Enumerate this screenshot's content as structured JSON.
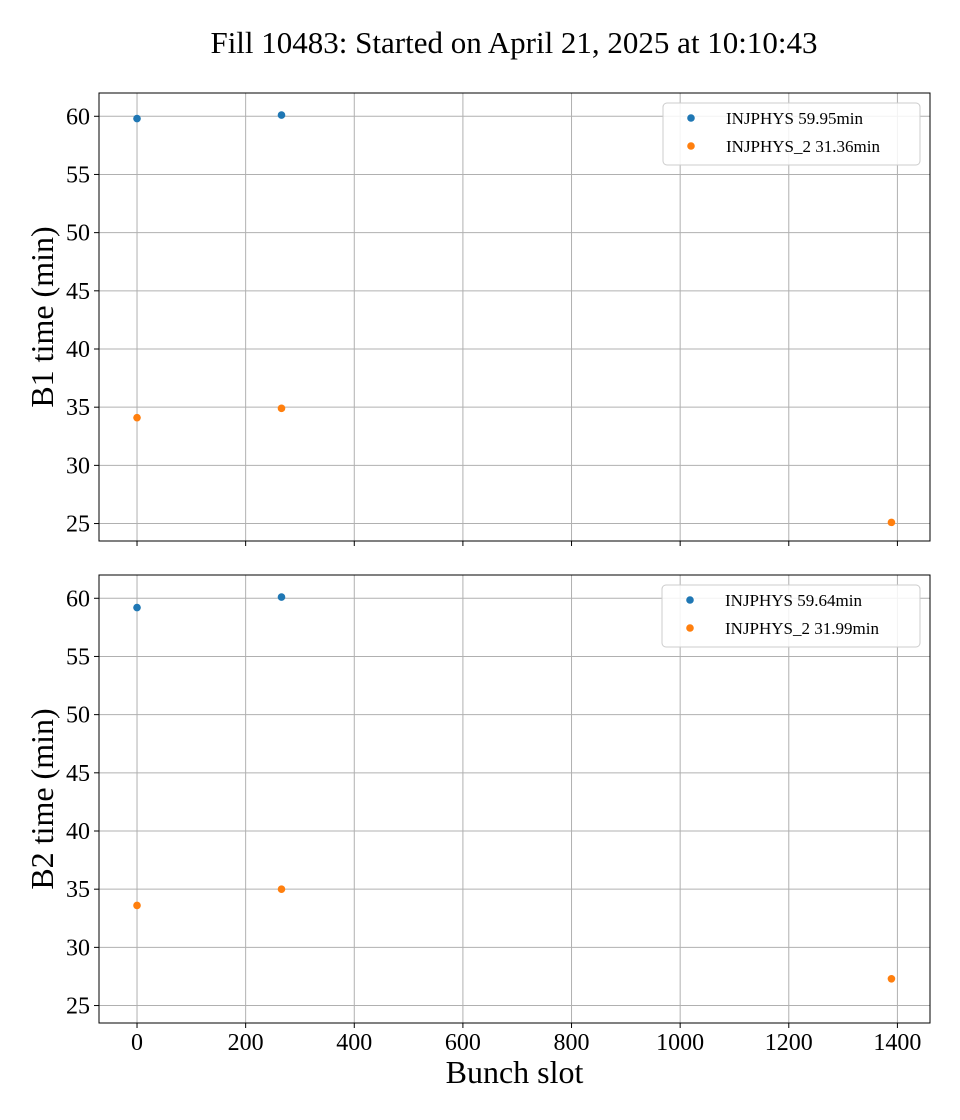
{
  "figure": {
    "title": "Fill 10483: Started on April 21, 2025 at 10:10:43"
  },
  "colors": {
    "series_1": "#1f77b4",
    "series_2": "#ff7f0e",
    "grid": "#b0b0b0"
  },
  "chart_data": [
    {
      "type": "scatter",
      "xlabel": "",
      "ylabel": "B1 time (min)",
      "xlim": [
        -70,
        1460
      ],
      "ylim": [
        23.5,
        62
      ],
      "x_ticks": [
        0,
        200,
        400,
        600,
        800,
        1000,
        1200,
        1400
      ],
      "y_ticks": [
        25,
        30,
        35,
        40,
        45,
        50,
        55,
        60
      ],
      "show_x_tick_labels": false,
      "grid": true,
      "legend_position": "upper right",
      "series": [
        {
          "name": "INJPHYS 59.95min",
          "color": "#1f77b4",
          "x": [
            0,
            266
          ],
          "y": [
            59.8,
            60.1
          ]
        },
        {
          "name": "INJPHYS_2 31.36min",
          "color": "#ff7f0e",
          "x": [
            0,
            266,
            1389
          ],
          "y": [
            34.1,
            34.9,
            25.1
          ]
        }
      ]
    },
    {
      "type": "scatter",
      "xlabel": "Bunch slot",
      "ylabel": "B2 time (min)",
      "xlim": [
        -70,
        1460
      ],
      "ylim": [
        23.5,
        62
      ],
      "x_ticks": [
        0,
        200,
        400,
        600,
        800,
        1000,
        1200,
        1400
      ],
      "y_ticks": [
        25,
        30,
        35,
        40,
        45,
        50,
        55,
        60
      ],
      "show_x_tick_labels": true,
      "grid": true,
      "legend_position": "upper right",
      "series": [
        {
          "name": "INJPHYS 59.64min",
          "color": "#1f77b4",
          "x": [
            0,
            266
          ],
          "y": [
            59.2,
            60.1
          ]
        },
        {
          "name": "INJPHYS_2 31.99min",
          "color": "#ff7f0e",
          "x": [
            0,
            266,
            1389
          ],
          "y": [
            33.6,
            35.0,
            27.3
          ]
        }
      ]
    }
  ]
}
